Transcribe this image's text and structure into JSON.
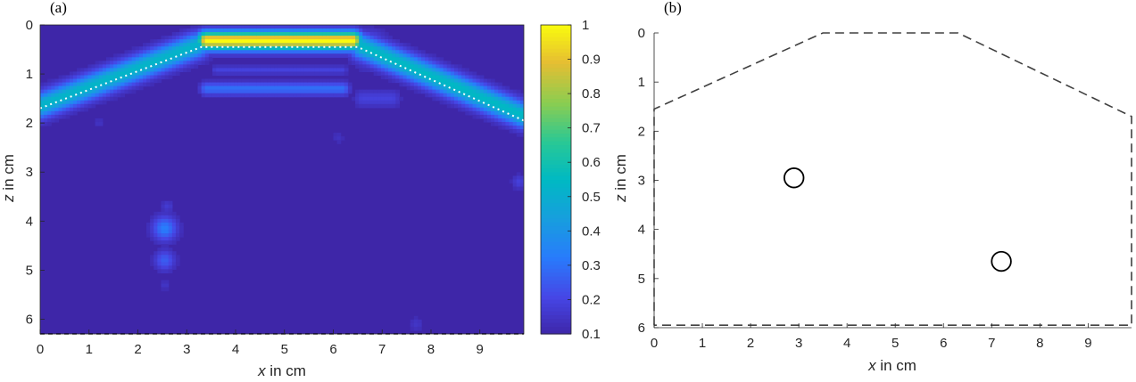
{
  "chart_data": [
    {
      "type": "heatmap",
      "panel_label": "(a)",
      "xlabel_var": "x",
      "xlabel_unit": " in cm",
      "ylabel_var": "z",
      "ylabel_unit": " in cm",
      "xlim": [
        0,
        9.9
      ],
      "ylim": [
        0,
        6.3
      ],
      "y_reversed": true,
      "xticks": [
        0,
        1,
        2,
        3,
        4,
        5,
        6,
        7,
        8,
        9
      ],
      "yticks": [
        0,
        1,
        2,
        3,
        4,
        5,
        6
      ],
      "colorbar": {
        "range": [
          0.1,
          1
        ],
        "ticks": [
          0.1,
          0.2,
          0.3,
          0.4,
          0.5,
          0.6,
          0.7,
          0.8,
          0.9,
          1
        ],
        "tick_labels": [
          "0.1",
          "0.2",
          "0.3",
          "0.4",
          "0.5",
          "0.6",
          "0.7",
          "0.8",
          "0.9",
          "1"
        ]
      },
      "boundary_dotted": {
        "x": [
          0.0,
          3.3,
          6.5,
          9.9
        ],
        "z": [
          1.7,
          0.45,
          0.45,
          1.95
        ]
      },
      "blobs": [
        {
          "x1": 3.4,
          "z1": 0.32,
          "x2": 6.4,
          "z2": 0.32,
          "sigma": 0.13,
          "amp": 1.0
        },
        {
          "x1": 0.0,
          "z1": 1.65,
          "x2": 3.2,
          "z2": 0.42,
          "sigma": 0.17,
          "amp": 0.48
        },
        {
          "x1": 6.6,
          "z1": 0.45,
          "x2": 9.9,
          "z2": 1.85,
          "sigma": 0.17,
          "amp": 0.5
        },
        {
          "x1": 6.75,
          "z1": 0.5,
          "x2": 6.75,
          "z2": 0.5,
          "sigma": 0.22,
          "amp": 0.25
        },
        {
          "x1": 3.4,
          "z1": 1.3,
          "x2": 6.2,
          "z2": 1.3,
          "sigma": 0.09,
          "amp": 0.22
        },
        {
          "x1": 3.6,
          "z1": 0.92,
          "x2": 6.2,
          "z2": 0.92,
          "sigma": 0.06,
          "amp": 0.1
        },
        {
          "x1": 2.55,
          "z1": 4.15,
          "x2": 2.55,
          "z2": 4.15,
          "sigma": 0.17,
          "amp": 0.26
        },
        {
          "x1": 2.55,
          "z1": 4.8,
          "x2": 2.55,
          "z2": 4.8,
          "sigma": 0.14,
          "amp": 0.18
        },
        {
          "x1": 2.6,
          "z1": 3.7,
          "x2": 2.6,
          "z2": 3.7,
          "sigma": 0.09,
          "amp": 0.08
        },
        {
          "x1": 2.55,
          "z1": 5.3,
          "x2": 2.55,
          "z2": 5.3,
          "sigma": 0.07,
          "amp": 0.06
        },
        {
          "x1": 6.6,
          "z1": 1.5,
          "x2": 7.2,
          "z2": 1.5,
          "sigma": 0.12,
          "amp": 0.1
        },
        {
          "x1": 9.8,
          "z1": 3.2,
          "x2": 9.8,
          "z2": 3.2,
          "sigma": 0.1,
          "amp": 0.1
        },
        {
          "x1": 7.7,
          "z1": 6.1,
          "x2": 7.7,
          "z2": 6.1,
          "sigma": 0.1,
          "amp": 0.06
        },
        {
          "x1": 1.2,
          "z1": 2.0,
          "x2": 1.2,
          "z2": 2.0,
          "sigma": 0.08,
          "amp": 0.05
        },
        {
          "x1": 6.1,
          "z1": 2.3,
          "x2": 6.1,
          "z2": 2.3,
          "sigma": 0.08,
          "amp": 0.05
        }
      ]
    },
    {
      "type": "scatter",
      "panel_label": "(b)",
      "xlabel_var": "x",
      "xlabel_unit": " in cm",
      "ylabel_var": "z",
      "ylabel_unit": " in cm",
      "xlim": [
        0,
        9.9
      ],
      "ylim": [
        0,
        6
      ],
      "y_reversed": true,
      "xticks": [
        0,
        1,
        2,
        3,
        4,
        5,
        6,
        7,
        8,
        9
      ],
      "yticks": [
        0,
        1,
        2,
        3,
        4,
        5,
        6
      ],
      "boundary_dashed": {
        "x": [
          0.0,
          0.0,
          3.5,
          6.3,
          9.9,
          9.9,
          0.0
        ],
        "z": [
          5.95,
          1.55,
          0.0,
          0.0,
          1.7,
          5.95,
          5.95
        ]
      },
      "targets": [
        {
          "x": 2.9,
          "z": 2.95,
          "radius": 0.2
        },
        {
          "x": 7.2,
          "z": 4.65,
          "radius": 0.2
        }
      ]
    }
  ]
}
